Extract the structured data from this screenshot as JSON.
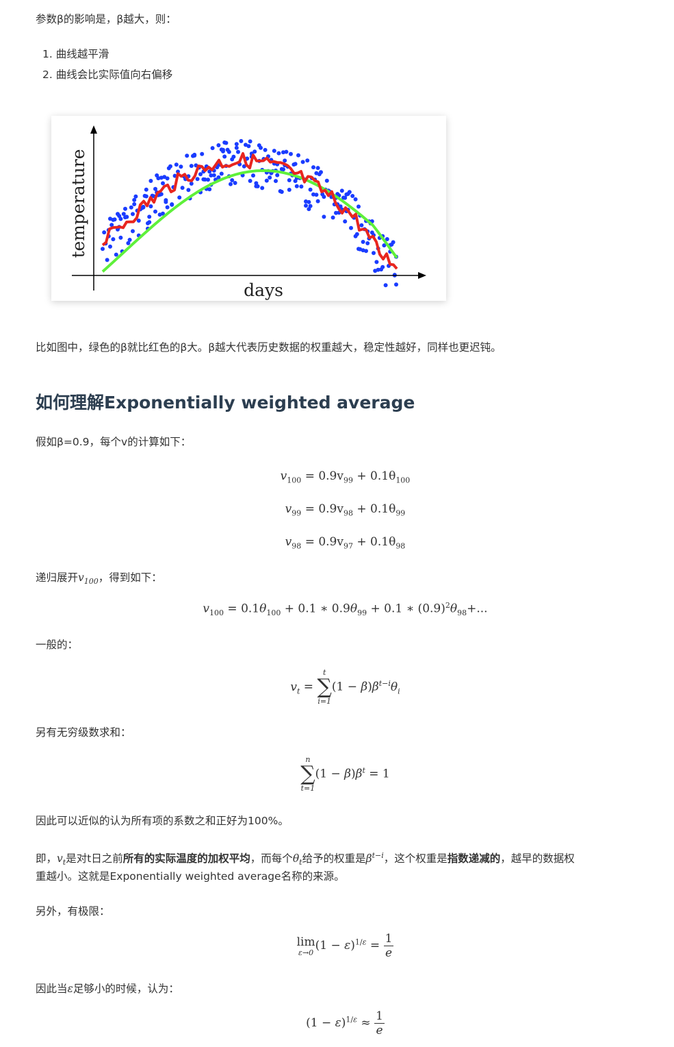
{
  "intro": "参数β的影响是，β越大，则：",
  "list": [
    "1. 曲线越平滑",
    "2. 曲线会比实际值向右偏移"
  ],
  "figure": {
    "ylabel": "temperature",
    "xlabel": "days",
    "colors": {
      "points": "#1a3cff",
      "red": "#e8261f",
      "green": "#5ef03a"
    }
  },
  "para_example": "比如图中，绿色的β就比红色的β大。β越大代表历史数据的权重越大，稳定性越好，同样也更迟钝。",
  "heading": "如何理解Exponentially weighted average",
  "para_assume": "假如β=0.9，每个v的计算如下：",
  "eq_lines": [
    {
      "lhs": "v",
      "lsub": "100",
      "rhs": "= 0.9v",
      "r1sub": "99",
      "plus": " + 0.1θ",
      "r2sub": "100"
    },
    {
      "lhs": "v",
      "lsub": "99",
      "rhs": "= 0.9v",
      "r1sub": "98",
      "plus": " + 0.1θ",
      "r2sub": "99"
    },
    {
      "lhs": "v",
      "lsub": "98",
      "rhs": "= 0.9v",
      "r1sub": "97",
      "plus": " + 0.1θ",
      "r2sub": "98"
    }
  ],
  "para_expand_a": "递归展开",
  "para_expand_b": "，得到如下：",
  "para_general": "一般的：",
  "para_series": "另有无穷级数求和：",
  "para_sum": "因此可以近似的认为所有项的系数之和正好为100%。",
  "para_ie": {
    "a": "即，",
    "b": "是对t日之前",
    "bold1": "所有的实际温度的加权平均",
    "c": "，而每个",
    "d": "给予的权重是",
    "e": "，这个权重是",
    "bold2": "指数递减的",
    "f": "，越早的数据权",
    "line2": "重越小。这就是Exponentially weighted average名称的来源。"
  },
  "para_limit": "另外，有极限：",
  "para_small_a": "因此当",
  "para_small_b": "足够小的时候，认为："
}
